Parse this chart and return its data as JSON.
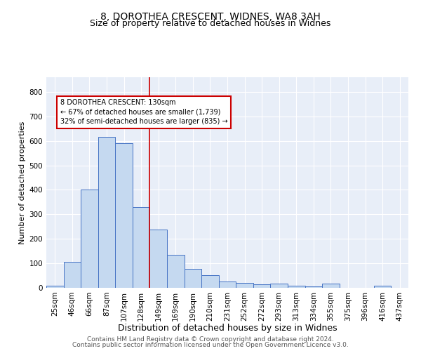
{
  "title1": "8, DOROTHEA CRESCENT, WIDNES, WA8 3AH",
  "title2": "Size of property relative to detached houses in Widnes",
  "xlabel": "Distribution of detached houses by size in Widnes",
  "ylabel": "Number of detached properties",
  "categories": [
    "25sqm",
    "46sqm",
    "66sqm",
    "87sqm",
    "107sqm",
    "128sqm",
    "149sqm",
    "169sqm",
    "190sqm",
    "210sqm",
    "231sqm",
    "252sqm",
    "272sqm",
    "293sqm",
    "313sqm",
    "334sqm",
    "355sqm",
    "375sqm",
    "396sqm",
    "416sqm",
    "437sqm"
  ],
  "values": [
    8,
    105,
    400,
    615,
    590,
    330,
    237,
    135,
    78,
    53,
    25,
    20,
    15,
    18,
    8,
    5,
    18,
    0,
    0,
    8,
    0
  ],
  "bar_color": "#c5d9f0",
  "bar_edge_color": "#4472c4",
  "vline_x_index": 5,
  "vline_color": "#cc0000",
  "annotation_text": "8 DOROTHEA CRESCENT: 130sqm\n← 67% of detached houses are smaller (1,739)\n32% of semi-detached houses are larger (835) →",
  "annotation_box_color": "white",
  "annotation_box_edge_color": "#cc0000",
  "ylim": [
    0,
    860
  ],
  "yticks": [
    0,
    100,
    200,
    300,
    400,
    500,
    600,
    700,
    800
  ],
  "background_color": "#e8eef8",
  "grid_color": "#ffffff",
  "footer1": "Contains HM Land Registry data © Crown copyright and database right 2024.",
  "footer2": "Contains public sector information licensed under the Open Government Licence v3.0.",
  "title1_fontsize": 10,
  "title2_fontsize": 9,
  "xlabel_fontsize": 9,
  "ylabel_fontsize": 8,
  "tick_fontsize": 7.5,
  "footer_fontsize": 6.5
}
